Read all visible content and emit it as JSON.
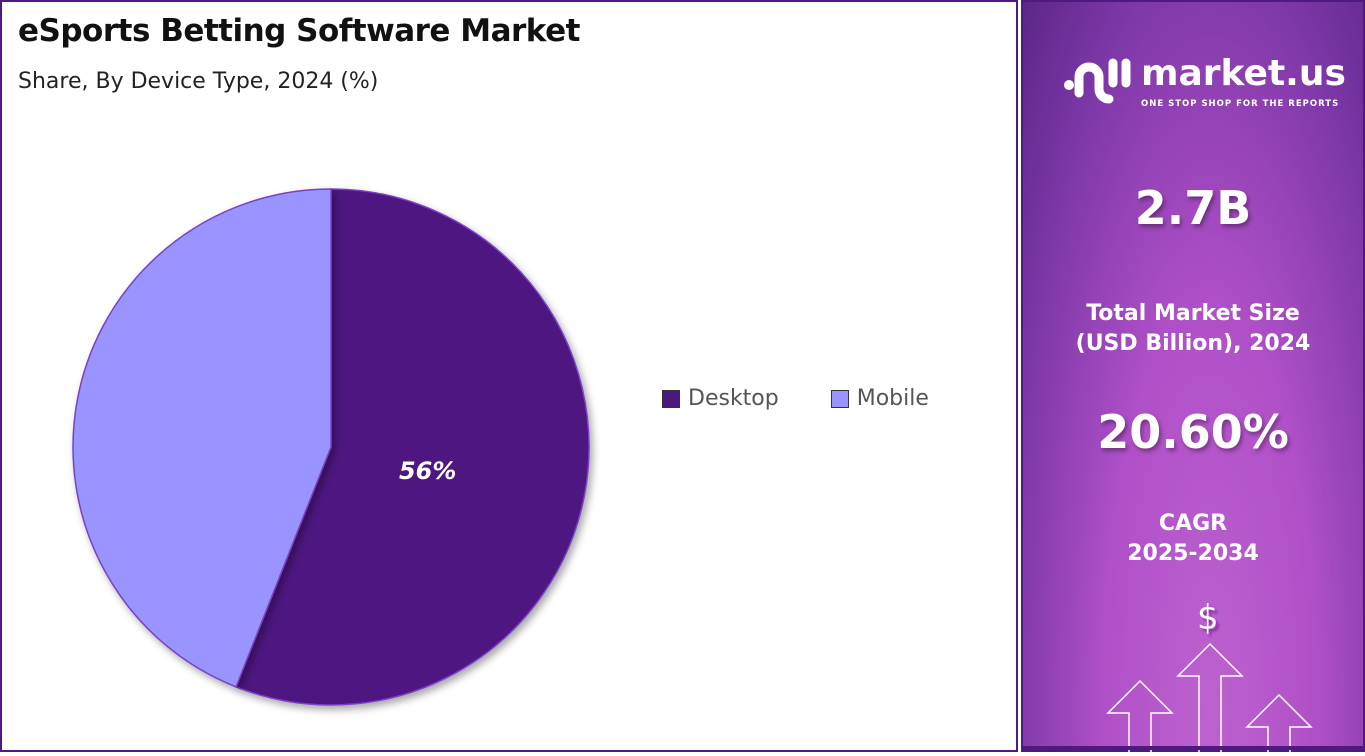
{
  "header": {
    "title": "eSports Betting Software Market",
    "subtitle": "Share, By Device Type, 2024 (%)"
  },
  "chart_data": {
    "type": "pie",
    "categories": [
      "Desktop",
      "Mobile"
    ],
    "values": [
      56,
      44
    ],
    "data_labels": [
      "56%",
      ""
    ],
    "colors": [
      "#4e1680",
      "#9994ff"
    ],
    "legend_position": "right"
  },
  "legend": [
    {
      "label": "Desktop",
      "color": "#4e1680"
    },
    {
      "label": "Mobile",
      "color": "#9994ff"
    }
  ],
  "sidebar": {
    "brand": "market.us",
    "tagline": "ONE STOP SHOP FOR THE REPORTS",
    "market_size": "2.7B",
    "market_size_label_1": "Total Market Size",
    "market_size_label_2": "(USD Billion), 2024",
    "cagr": "20.60%",
    "cagr_label_1": "CAGR",
    "cagr_label_2": "2025-2034",
    "dollar": "$"
  }
}
